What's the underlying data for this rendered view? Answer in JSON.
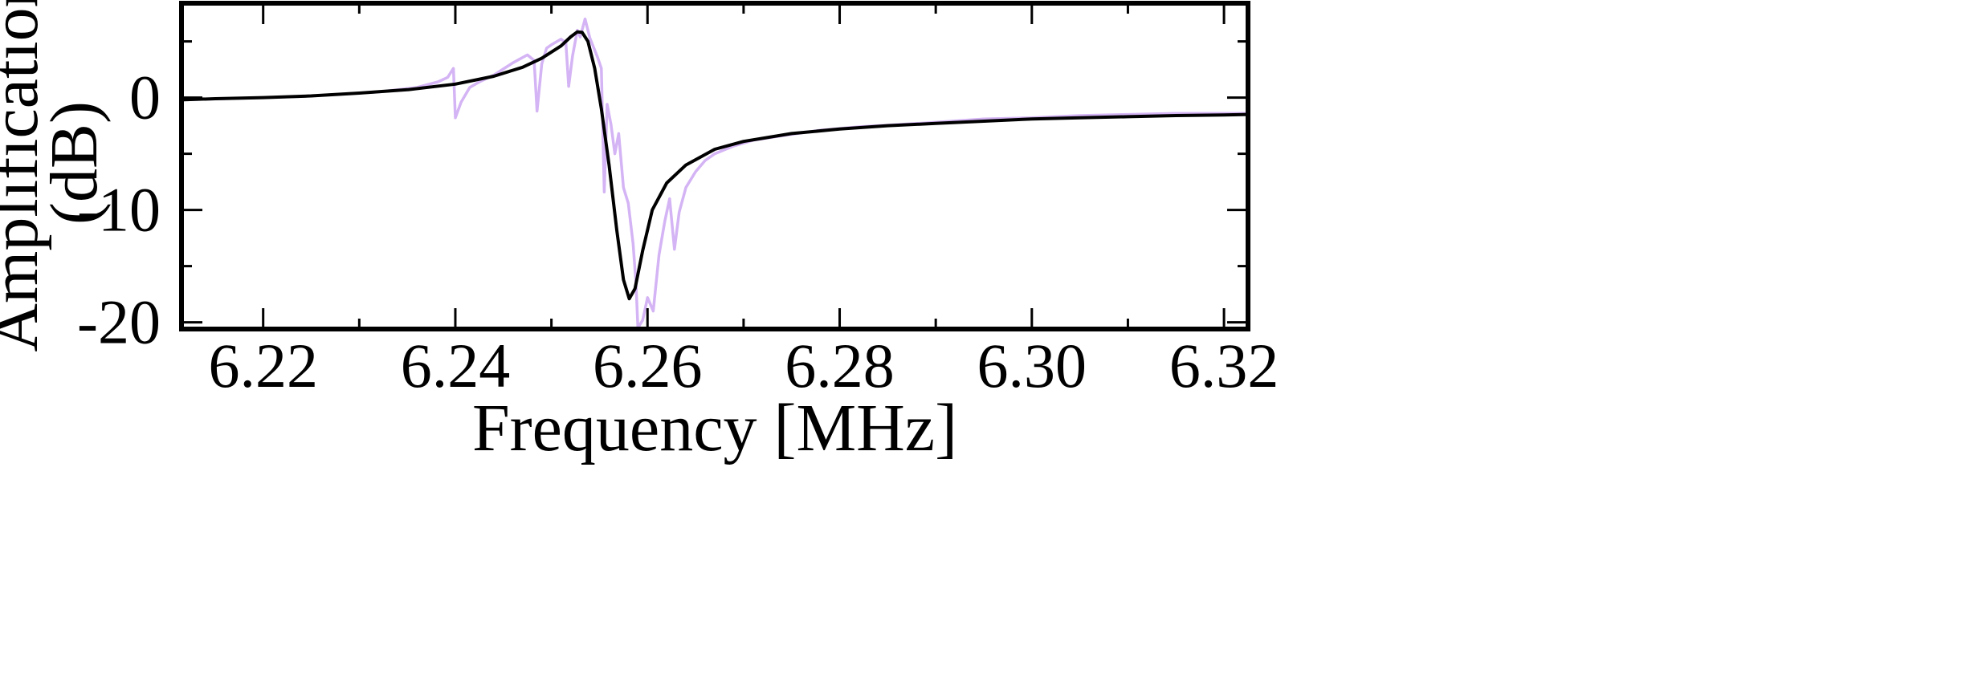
{
  "chart_data": {
    "type": "line",
    "title": "",
    "xlabel": "Frequency [MHz]",
    "ylabel_line1": "Amplification",
    "ylabel_line2": "(dB)",
    "xlim": [
      6.2115,
      6.3225
    ],
    "ylim": [
      -20.6,
      8.4
    ],
    "x_ticks": [
      6.22,
      6.24,
      6.26,
      6.28,
      6.3,
      6.32
    ],
    "x_tick_labels": [
      "6.22",
      "6.24",
      "6.26",
      "6.28",
      "6.30",
      "6.32"
    ],
    "x_minor_ticks": [
      6.23,
      6.25,
      6.27,
      6.29,
      6.31
    ],
    "y_ticks": [
      0,
      -10,
      -20
    ],
    "y_tick_labels": [
      "0",
      "-10",
      "-20"
    ],
    "y_minor_ticks": [
      5,
      -5,
      -15
    ],
    "grid": false,
    "legend": "none",
    "series": [
      {
        "kind": "measured",
        "color": "#d4b4f4",
        "points": [
          [
            6.2115,
            -0.2
          ],
          [
            6.216,
            -0.1
          ],
          [
            6.22,
            0.0
          ],
          [
            6.224,
            0.1
          ],
          [
            6.228,
            0.3
          ],
          [
            6.232,
            0.5
          ],
          [
            6.236,
            0.9
          ],
          [
            6.2382,
            1.4
          ],
          [
            6.2392,
            1.8
          ],
          [
            6.2398,
            2.6
          ],
          [
            6.24,
            -1.8
          ],
          [
            6.2406,
            -0.4
          ],
          [
            6.2415,
            0.9
          ],
          [
            6.2425,
            1.4
          ],
          [
            6.244,
            2.0
          ],
          [
            6.246,
            3.1
          ],
          [
            6.2475,
            3.8
          ],
          [
            6.2482,
            3.3
          ],
          [
            6.2485,
            -1.2
          ],
          [
            6.249,
            3.0
          ],
          [
            6.2495,
            4.4
          ],
          [
            6.25,
            4.7
          ],
          [
            6.251,
            5.2
          ],
          [
            6.2515,
            4.9
          ],
          [
            6.2518,
            1.0
          ],
          [
            6.2522,
            3.7
          ],
          [
            6.2527,
            6.0
          ],
          [
            6.253,
            5.4
          ],
          [
            6.2535,
            7.0
          ],
          [
            6.254,
            5.3
          ],
          [
            6.2548,
            3.6
          ],
          [
            6.2552,
            2.6
          ],
          [
            6.2555,
            -8.4
          ],
          [
            6.2558,
            -0.6
          ],
          [
            6.2562,
            -2.4
          ],
          [
            6.2566,
            -5.0
          ],
          [
            6.257,
            -3.2
          ],
          [
            6.2575,
            -8.0
          ],
          [
            6.258,
            -9.4
          ],
          [
            6.2585,
            -13.0
          ],
          [
            6.2588,
            -16.5
          ],
          [
            6.259,
            -20.5
          ],
          [
            6.2595,
            -19.8
          ],
          [
            6.26,
            -17.8
          ],
          [
            6.2606,
            -19.0
          ],
          [
            6.2612,
            -14.0
          ],
          [
            6.2618,
            -11.0
          ],
          [
            6.2623,
            -9.0
          ],
          [
            6.2628,
            -13.5
          ],
          [
            6.2633,
            -10.2
          ],
          [
            6.264,
            -8.0
          ],
          [
            6.265,
            -6.6
          ],
          [
            6.266,
            -5.6
          ],
          [
            6.267,
            -5.0
          ],
          [
            6.269,
            -4.3
          ],
          [
            6.271,
            -3.8
          ],
          [
            6.274,
            -3.4
          ],
          [
            6.278,
            -2.9
          ],
          [
            6.282,
            -2.6
          ],
          [
            6.286,
            -2.4
          ],
          [
            6.29,
            -2.2
          ],
          [
            6.295,
            -1.9
          ],
          [
            6.3,
            -1.8
          ],
          [
            6.305,
            -1.6
          ],
          [
            6.31,
            -1.5
          ],
          [
            6.315,
            -1.4
          ],
          [
            6.32,
            -1.4
          ],
          [
            6.3225,
            -1.4
          ]
        ]
      },
      {
        "kind": "fit",
        "color": "#000000",
        "points": [
          [
            6.2115,
            -0.2
          ],
          [
            6.215,
            -0.1
          ],
          [
            6.22,
            0.0
          ],
          [
            6.225,
            0.15
          ],
          [
            6.23,
            0.4
          ],
          [
            6.235,
            0.7
          ],
          [
            6.24,
            1.2
          ],
          [
            6.244,
            1.9
          ],
          [
            6.247,
            2.7
          ],
          [
            6.249,
            3.5
          ],
          [
            6.251,
            4.6
          ],
          [
            6.252,
            5.4
          ],
          [
            6.2527,
            5.85
          ],
          [
            6.2532,
            5.8
          ],
          [
            6.2538,
            5.0
          ],
          [
            6.2545,
            2.6
          ],
          [
            6.2552,
            -1.0
          ],
          [
            6.256,
            -6.0
          ],
          [
            6.2568,
            -11.8
          ],
          [
            6.2575,
            -16.2
          ],
          [
            6.2581,
            -17.9
          ],
          [
            6.2587,
            -17.0
          ],
          [
            6.2595,
            -13.6
          ],
          [
            6.2605,
            -10.0
          ],
          [
            6.262,
            -7.6
          ],
          [
            6.264,
            -6.0
          ],
          [
            6.267,
            -4.6
          ],
          [
            6.27,
            -3.9
          ],
          [
            6.275,
            -3.2
          ],
          [
            6.28,
            -2.8
          ],
          [
            6.285,
            -2.5
          ],
          [
            6.29,
            -2.3
          ],
          [
            6.295,
            -2.1
          ],
          [
            6.3,
            -1.9
          ],
          [
            6.305,
            -1.8
          ],
          [
            6.31,
            -1.7
          ],
          [
            6.315,
            -1.6
          ],
          [
            6.32,
            -1.55
          ],
          [
            6.3225,
            -1.5
          ]
        ]
      }
    ]
  }
}
